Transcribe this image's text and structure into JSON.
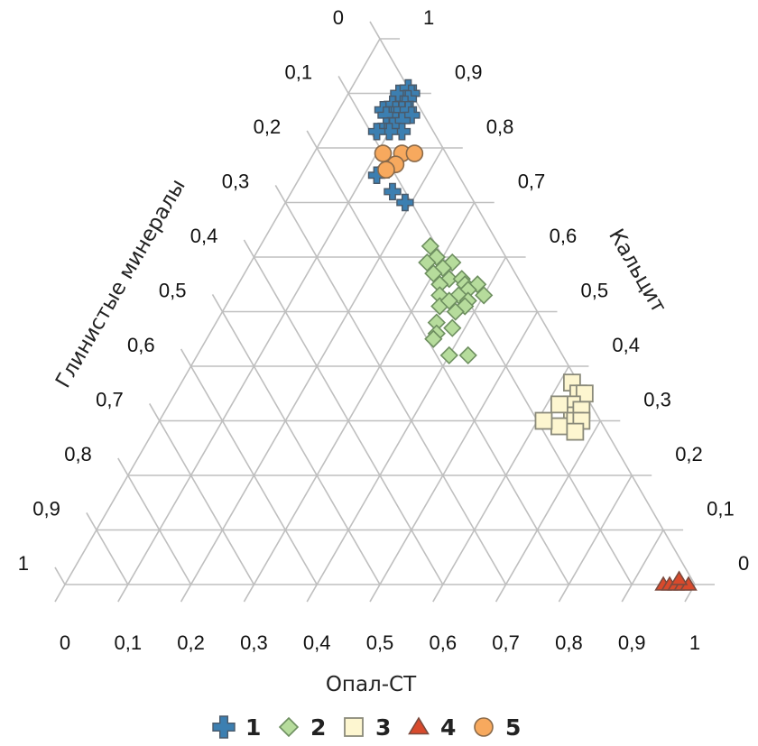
{
  "chart_data": {
    "type": "scatter",
    "subtype": "ternary",
    "title": "",
    "axes": {
      "bottom": {
        "label": "Опал-СТ",
        "ticks": [
          "0",
          "0,1",
          "0,2",
          "0,3",
          "0,4",
          "0,5",
          "0,6",
          "0,7",
          "0,8",
          "0,9",
          "1"
        ]
      },
      "left": {
        "label": "Глинистые минералы",
        "ticks": [
          "0",
          "0,1",
          "0,2",
          "0,3",
          "0,4",
          "0,5",
          "0,6",
          "0,7",
          "0,8",
          "0,9",
          "1"
        ]
      },
      "right": {
        "label": "Кальцит",
        "ticks": [
          "1",
          "0,9",
          "0,8",
          "0,7",
          "0,6",
          "0,5",
          "0,4",
          "0,3",
          "0,2",
          "0,1",
          "0"
        ]
      }
    },
    "grid": true,
    "legend_position": "bottom",
    "series": [
      {
        "name": "1",
        "marker": "plus",
        "color": "#3c7fb1",
        "edge": "#4a5a6a",
        "points": [
          [
            0.08,
            0.9
          ],
          [
            0.09,
            0.91
          ],
          [
            0.1,
            0.9
          ],
          [
            0.1,
            0.89
          ],
          [
            0.1,
            0.88
          ],
          [
            0.08,
            0.88
          ],
          [
            0.09,
            0.87
          ],
          [
            0.1,
            0.87
          ],
          [
            0.11,
            0.87
          ],
          [
            0.12,
            0.86
          ],
          [
            0.07,
            0.87
          ],
          [
            0.08,
            0.86
          ],
          [
            0.1,
            0.85
          ],
          [
            0.11,
            0.85
          ],
          [
            0.09,
            0.84
          ],
          [
            0.1,
            0.84
          ],
          [
            0.12,
            0.83
          ],
          [
            0.1,
            0.83
          ],
          [
            0.08,
            0.83
          ],
          [
            0.13,
            0.76
          ],
          [
            0.12,
            0.75
          ],
          [
            0.16,
            0.72
          ],
          [
            0.19,
            0.7
          ]
        ]
      },
      {
        "name": "2",
        "marker": "diamond",
        "color": "#b6dc9c",
        "edge": "#6e8f60",
        "points": [
          [
            0.27,
            0.62
          ],
          [
            0.29,
            0.6
          ],
          [
            0.28,
            0.59
          ],
          [
            0.32,
            0.59
          ],
          [
            0.31,
            0.58
          ],
          [
            0.3,
            0.57
          ],
          [
            0.33,
            0.56
          ],
          [
            0.35,
            0.56
          ],
          [
            0.36,
            0.55
          ],
          [
            0.38,
            0.55
          ],
          [
            0.32,
            0.55
          ],
          [
            0.37,
            0.54
          ],
          [
            0.36,
            0.53
          ],
          [
            0.33,
            0.53
          ],
          [
            0.38,
            0.52
          ],
          [
            0.4,
            0.53
          ],
          [
            0.34,
            0.51
          ],
          [
            0.38,
            0.51
          ],
          [
            0.35,
            0.52
          ],
          [
            0.37,
            0.5
          ],
          [
            0.35,
            0.48
          ],
          [
            0.38,
            0.47
          ],
          [
            0.36,
            0.46
          ],
          [
            0.36,
            0.45
          ],
          [
            0.4,
            0.42
          ],
          [
            0.43,
            0.42
          ]
        ]
      },
      {
        "name": "3",
        "marker": "square",
        "color": "#fdf6d0",
        "edge": "#8a8a7a",
        "points": [
          [
            0.62,
            0.37
          ],
          [
            0.64,
            0.35
          ],
          [
            0.65,
            0.35
          ],
          [
            0.64,
            0.33
          ],
          [
            0.65,
            0.31
          ],
          [
            0.62,
            0.33
          ],
          [
            0.66,
            0.32
          ],
          [
            0.64,
            0.29
          ],
          [
            0.66,
            0.3
          ],
          [
            0.67,
            0.3
          ],
          [
            0.61,
            0.3
          ],
          [
            0.67,
            0.28
          ]
        ]
      },
      {
        "name": "4",
        "marker": "triangle",
        "color": "#d84a2c",
        "edge": "#7a4a3e",
        "points": [
          [
            0.95,
            0.0
          ],
          [
            0.96,
            0.0
          ],
          [
            0.97,
            0.0
          ],
          [
            0.98,
            0.0
          ],
          [
            0.99,
            0.0
          ],
          [
            0.97,
            0.01
          ]
        ]
      },
      {
        "name": "5",
        "marker": "circle",
        "color": "#f7a95e",
        "edge": "#8a6a4a",
        "points": [
          [
            0.11,
            0.79
          ],
          [
            0.14,
            0.79
          ],
          [
            0.16,
            0.79
          ],
          [
            0.14,
            0.77
          ],
          [
            0.13,
            0.76
          ]
        ]
      }
    ]
  }
}
